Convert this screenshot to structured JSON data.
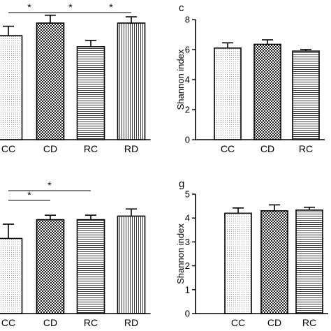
{
  "chart_data": [
    {
      "type": "bar",
      "panel": "",
      "title": "",
      "xlabel": "",
      "ylabel": "",
      "categories": [
        "CC",
        "CD",
        "RC",
        "RD"
      ],
      "values": [
        6.6,
        7.4,
        5.9,
        7.4
      ],
      "errors": [
        0.6,
        0.5,
        0.4,
        0.4
      ],
      "ylim": [
        0,
        8.6
      ],
      "yticks": [],
      "significance": [
        {
          "from": "CC",
          "to": "CD",
          "label": "*"
        },
        {
          "from": "CD",
          "to": "RC",
          "label": "*"
        },
        {
          "from": "RC",
          "to": "RD",
          "label": "*"
        }
      ],
      "fill_patterns": [
        "dots",
        "checker",
        "horizontal-lines",
        "vertical-lines"
      ],
      "grid": false,
      "legend": "none"
    },
    {
      "type": "bar",
      "panel": "c",
      "title": "",
      "xlabel": "",
      "ylabel": "Shannon index",
      "categories": [
        "CC",
        "CD",
        "RC"
      ],
      "values": [
        6.1,
        6.35,
        5.9
      ],
      "errors": [
        0.35,
        0.3,
        0.1
      ],
      "ylim": [
        0,
        8
      ],
      "yticks": [
        "0",
        "2",
        "4",
        "6",
        "8"
      ],
      "fill_patterns": [
        "dots",
        "checker",
        "horizontal-lines"
      ],
      "grid": false,
      "legend": "none"
    },
    {
      "type": "bar",
      "panel": "",
      "title": "",
      "xlabel": "",
      "ylabel": "",
      "categories": [
        "CC",
        "CD",
        "RC",
        "RD"
      ],
      "values": [
        4.2,
        5.25,
        5.25,
        5.45
      ],
      "errors": [
        0.8,
        0.25,
        0.25,
        0.4
      ],
      "ylim": [
        0,
        7.5
      ],
      "yticks": [],
      "significance": [
        {
          "from": "CC",
          "to": "CD",
          "label": "*"
        },
        {
          "from": "CC",
          "to": "RC",
          "label": "*"
        }
      ],
      "fill_patterns": [
        "dots",
        "checker",
        "horizontal-lines",
        "vertical-lines"
      ],
      "grid": false,
      "legend": "none"
    },
    {
      "type": "bar",
      "panel": "g",
      "title": "",
      "xlabel": "",
      "ylabel": "Shannon index",
      "categories": [
        "CC",
        "CD",
        "RC"
      ],
      "values": [
        4.2,
        4.3,
        4.33
      ],
      "errors": [
        0.22,
        0.25,
        0.12
      ],
      "ylim": [
        0,
        5
      ],
      "yticks": [
        "0",
        "1",
        "2",
        "3",
        "4",
        "5"
      ],
      "fill_patterns": [
        "dots",
        "checker",
        "horizontal-lines"
      ],
      "grid": false,
      "legend": "none"
    }
  ]
}
